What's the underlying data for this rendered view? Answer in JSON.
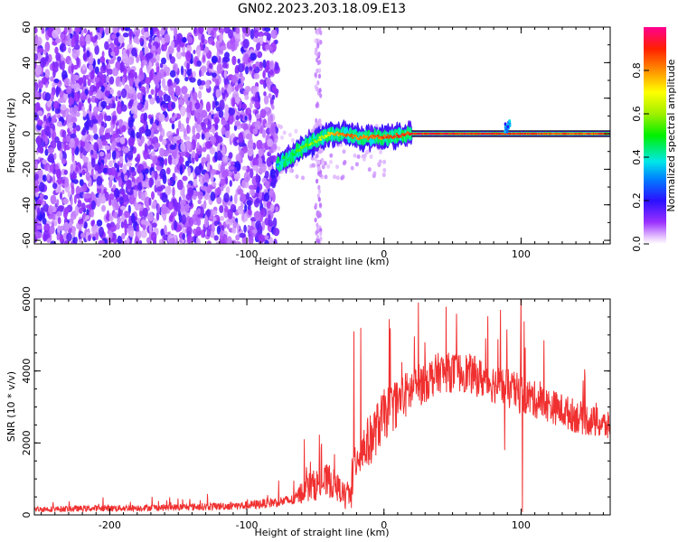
{
  "title": "GN02.2023.203.18.09.E13",
  "chart_data": [
    {
      "type": "heatmap",
      "xlabel": "Height of straight line (km)",
      "ylabel": "Frequency (Hz)",
      "xlim": [
        -255,
        165
      ],
      "ylim": [
        -62,
        60
      ],
      "xticks": [
        -200,
        -100,
        0,
        100
      ],
      "yticks": [
        60,
        40,
        20,
        0,
        -20,
        -40,
        -60
      ],
      "colorbar": {
        "label": "Normalized spectral amplitude",
        "range": [
          0,
          1
        ],
        "ticks": [
          "0.0",
          "0.2",
          "0.4",
          "0.6",
          "0.8"
        ]
      },
      "regions": {
        "noise_x": [
          -255,
          -78
        ],
        "noise_y": [
          -62,
          60
        ],
        "stripe_x": -48,
        "signal_track": [
          {
            "x": -78,
            "y": -18,
            "amp": 0.3
          },
          {
            "x": -70,
            "y": -14,
            "amp": 0.45
          },
          {
            "x": -60,
            "y": -8,
            "amp": 0.55
          },
          {
            "x": -50,
            "y": -4,
            "amp": 0.6
          },
          {
            "x": -40,
            "y": 0,
            "amp": 0.7
          },
          {
            "x": -30,
            "y": 0,
            "amp": 0.85
          },
          {
            "x": -20,
            "y": -2,
            "amp": 0.8
          },
          {
            "x": 0,
            "y": -2,
            "amp": 0.85
          },
          {
            "x": 20,
            "y": 0,
            "amp": 0.9
          },
          {
            "x": 60,
            "y": 0,
            "amp": 0.9
          },
          {
            "x": 90,
            "y": 0,
            "amp": 0.9
          },
          {
            "x": 120,
            "y": 0,
            "amp": 0.85
          },
          {
            "x": 165,
            "y": 0,
            "amp": 0.85
          }
        ]
      }
    },
    {
      "type": "line",
      "xlabel": "Height of straight line (km)",
      "ylabel": "SNR (10 * v/v)",
      "xlim": [
        -255,
        165
      ],
      "ylim": [
        0,
        6000
      ],
      "xticks": [
        -200,
        -100,
        0,
        100
      ],
      "yticks": [
        0,
        2000,
        4000,
        6000
      ],
      "color": "#f03030",
      "envelope": [
        {
          "x": -255,
          "base": 150,
          "noise": 100
        },
        {
          "x": -150,
          "base": 200,
          "noise": 120
        },
        {
          "x": -100,
          "base": 250,
          "noise": 150
        },
        {
          "x": -65,
          "base": 400,
          "noise": 200
        },
        {
          "x": -58,
          "base": 700,
          "noise": 500
        },
        {
          "x": -40,
          "base": 900,
          "noise": 600
        },
        {
          "x": -30,
          "base": 600,
          "noise": 400
        },
        {
          "x": -25,
          "base": 700,
          "noise": 600
        },
        {
          "x": -20,
          "base": 1600,
          "noise": 900
        },
        {
          "x": -10,
          "base": 2000,
          "noise": 900
        },
        {
          "x": 0,
          "base": 2700,
          "noise": 900
        },
        {
          "x": 20,
          "base": 3400,
          "noise": 800
        },
        {
          "x": 40,
          "base": 3900,
          "noise": 700
        },
        {
          "x": 60,
          "base": 3900,
          "noise": 700
        },
        {
          "x": 80,
          "base": 3600,
          "noise": 700
        },
        {
          "x": 100,
          "base": 3300,
          "noise": 700
        },
        {
          "x": 120,
          "base": 3000,
          "noise": 600
        },
        {
          "x": 140,
          "base": 2700,
          "noise": 600
        },
        {
          "x": 165,
          "base": 2400,
          "noise": 500
        }
      ],
      "spikes": [
        {
          "x": -22,
          "y": 5100
        },
        {
          "x": -17,
          "y": 5200
        },
        {
          "x": 25,
          "y": 5900
        },
        {
          "x": 85,
          "y": 5700
        },
        {
          "x": 100,
          "y": 6100
        },
        {
          "x": 101,
          "y": 80
        },
        {
          "x": 88,
          "y": 1800
        }
      ]
    }
  ]
}
